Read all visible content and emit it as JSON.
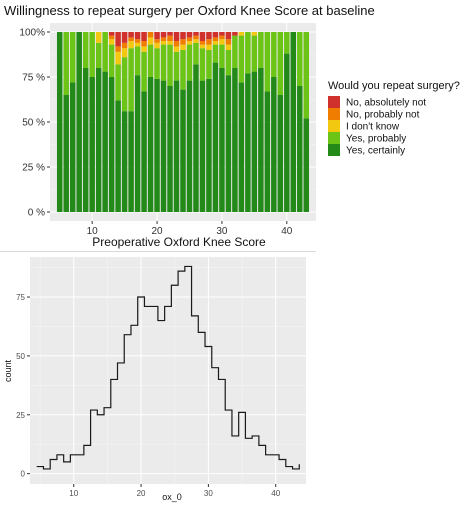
{
  "chart_data": [
    {
      "type": "bar",
      "stacked": true,
      "normalized": true,
      "title": "Willingness to repeat surgery per Oxford Knee Score at baseline",
      "xlabel": "Preoperative Oxford Knee Score",
      "ylabel": "",
      "x": [
        5,
        6,
        7,
        8,
        9,
        10,
        11,
        12,
        13,
        14,
        15,
        16,
        17,
        18,
        19,
        20,
        21,
        22,
        23,
        24,
        25,
        26,
        27,
        28,
        29,
        30,
        31,
        32,
        33,
        34,
        35,
        36,
        37,
        38,
        39,
        40,
        41,
        42,
        43
      ],
      "xlim": [
        3.5,
        44.5
      ],
      "ylim": [
        0,
        1
      ],
      "xticks": [
        10,
        20,
        30,
        40
      ],
      "yticks": [
        0,
        0.25,
        0.5,
        0.75,
        1
      ],
      "ytick_labels": [
        "0 %",
        "25 %",
        "50 %",
        "75 %",
        "100%"
      ],
      "grid": true,
      "legend_title": "Would you repeat surgery?",
      "legend_position": "right",
      "series": [
        {
          "name": "No, absolutely not",
          "color": "#d0312d",
          "values": [
            0,
            0,
            0,
            0,
            0,
            0,
            0,
            0,
            0.02,
            0.08,
            0.06,
            0.03,
            0.04,
            0.05,
            0,
            0.04,
            0.03,
            0.02,
            0.05,
            0.04,
            0.03,
            0.02,
            0.05,
            0.04,
            0.03,
            0.02,
            0.04,
            0.02,
            0,
            0,
            0,
            0,
            0,
            0,
            0,
            0,
            0,
            0,
            0
          ]
        },
        {
          "name": "No, probably not",
          "color": "#f07c00",
          "values": [
            0,
            0,
            0,
            0,
            0,
            0,
            0,
            0,
            0.02,
            0.03,
            0.03,
            0.02,
            0.02,
            0.03,
            0.03,
            0.02,
            0.02,
            0.03,
            0.03,
            0.03,
            0.02,
            0.02,
            0.02,
            0.03,
            0.02,
            0.02,
            0.03,
            0,
            0,
            0,
            0,
            0,
            0,
            0,
            0,
            0,
            0,
            0,
            0
          ]
        },
        {
          "name": "I don't know",
          "color": "#f3c811",
          "values": [
            0,
            0,
            0,
            0,
            0,
            0,
            0.06,
            0,
            0.03,
            0.07,
            0.05,
            0.04,
            0.02,
            0.03,
            0.04,
            0.03,
            0.02,
            0.02,
            0.03,
            0.03,
            0.02,
            0.02,
            0.02,
            0.03,
            0.02,
            0.03,
            0.03,
            0,
            0.02,
            0,
            0.02,
            0,
            0,
            0,
            0,
            0,
            0,
            0,
            0
          ]
        },
        {
          "name": "Yes, probably",
          "color": "#6cc417",
          "values": [
            0,
            0.35,
            0.28,
            0,
            0.2,
            0.25,
            0.14,
            0.22,
            0.18,
            0.2,
            0.3,
            0.35,
            0.16,
            0.22,
            0.18,
            0.17,
            0.2,
            0.23,
            0.16,
            0.22,
            0.2,
            0.12,
            0.18,
            0.16,
            0.1,
            0.13,
            0.14,
            0.18,
            0.26,
            0.23,
            0.2,
            0.2,
            0.33,
            0.25,
            0.35,
            0.12,
            0,
            0.3,
            0.48
          ]
        },
        {
          "name": "Yes, certainly",
          "color": "#238a1a",
          "values": [
            1,
            0.65,
            0.72,
            1,
            0.8,
            0.75,
            0.8,
            0.78,
            0.75,
            0.62,
            0.56,
            0.56,
            0.76,
            0.67,
            0.75,
            0.74,
            0.73,
            0.7,
            0.73,
            0.68,
            0.73,
            0.82,
            0.73,
            0.74,
            0.83,
            0.8,
            0.76,
            0.8,
            0.72,
            0.77,
            0.78,
            0.8,
            0.67,
            0.75,
            0.65,
            0.88,
            1,
            0.7,
            0.52
          ]
        }
      ]
    },
    {
      "type": "line",
      "subtype": "histogram-step",
      "title": "",
      "xlabel": "ox_0",
      "ylabel": "count",
      "x": [
        5,
        6,
        7,
        8,
        9,
        10,
        11,
        12,
        13,
        14,
        15,
        16,
        17,
        18,
        19,
        20,
        21,
        22,
        23,
        24,
        25,
        26,
        27,
        28,
        29,
        30,
        31,
        32,
        33,
        34,
        35,
        36,
        37,
        38,
        39,
        40,
        41,
        42,
        43
      ],
      "values": [
        3,
        2,
        6,
        8,
        5,
        8,
        8,
        12,
        27,
        25,
        28,
        40,
        47,
        59,
        63,
        75,
        71,
        71,
        65,
        71,
        80,
        86,
        88,
        67,
        60,
        54,
        45,
        40,
        27,
        16,
        26,
        15,
        16,
        12,
        8,
        8,
        6,
        3,
        2
      ],
      "xlim": [
        3.5,
        44.5
      ],
      "ylim": [
        -4.4,
        92
      ],
      "xticks": [
        10,
        20,
        30,
        40
      ],
      "yticks": [
        0,
        25,
        50,
        75
      ],
      "grid": true
    }
  ]
}
